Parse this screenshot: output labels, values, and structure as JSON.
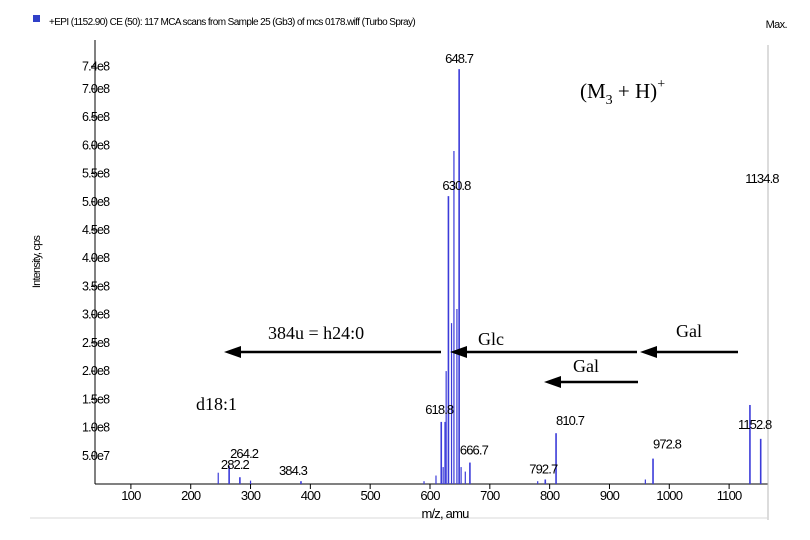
{
  "header": {
    "scan_title": "+EPI (1152.90) CE (50): 117 MCA scans from Sample 25 (Gb3) of mcs 0178.wiff (Turbo Spray)",
    "max_label": "Max."
  },
  "chart_data": {
    "type": "bar",
    "title": "",
    "xlabel": "m/z, amu",
    "ylabel": "Intensity, cps",
    "xlim": [
      40,
      1165
    ],
    "ylim": [
      0,
      760000000.0
    ],
    "x_ticks": [
      "100",
      "200",
      "300",
      "400",
      "500",
      "600",
      "700",
      "800",
      "900",
      "1000",
      "1100"
    ],
    "y_ticks": [
      {
        "label": "7.4e8",
        "value": 740000000.0
      },
      {
        "label": "7.0e8",
        "value": 700000000.0
      },
      {
        "label": "6.5e8",
        "value": 650000000.0
      },
      {
        "label": "6.0e8",
        "value": 600000000.0
      },
      {
        "label": "5.5e8",
        "value": 550000000.0
      },
      {
        "label": "5.0e8",
        "value": 500000000.0
      },
      {
        "label": "4.5e8",
        "value": 450000000.0
      },
      {
        "label": "4.0e8",
        "value": 400000000.0
      },
      {
        "label": "3.5e8",
        "value": 350000000.0
      },
      {
        "label": "3.0e8",
        "value": 300000000.0
      },
      {
        "label": "2.5e8",
        "value": 250000000.0
      },
      {
        "label": "2.0e8",
        "value": 200000000.0
      },
      {
        "label": "1.5e8",
        "value": 150000000.0
      },
      {
        "label": "1.0e8",
        "value": 100000000.0
      },
      {
        "label": "5.0e7",
        "value": 50000000.0
      }
    ],
    "peaks": [
      {
        "mz": 648.7,
        "intensity": 735000000.0,
        "label": "648.7"
      },
      {
        "mz": 630.8,
        "intensity": 510000000.0,
        "label": "630.8"
      },
      {
        "mz": 618.8,
        "intensity": 110000000.0,
        "label": "618.8"
      },
      {
        "mz": 666.7,
        "intensity": 38000000.0,
        "label": "666.7"
      },
      {
        "mz": 810.7,
        "intensity": 90000000.0,
        "label": "810.7"
      },
      {
        "mz": 792.7,
        "intensity": 8000000.0,
        "label": "792.7"
      },
      {
        "mz": 972.8,
        "intensity": 45000000.0,
        "label": "972.8"
      },
      {
        "mz": 1152.8,
        "intensity": 80000000.0,
        "label": "1152.8"
      },
      {
        "mz": 1134.8,
        "intensity": 140000000.0,
        "label": "1134.8"
      },
      {
        "mz": 264.2,
        "intensity": 32000000.0,
        "label": "264.2"
      },
      {
        "mz": 282.2,
        "intensity": 12000000.0,
        "label": "282.2"
      },
      {
        "mz": 384.3,
        "intensity": 5000000.0,
        "label": "384.3"
      }
    ],
    "minor_peaks": [
      {
        "mz": 640.0,
        "intensity": 590000000.0
      },
      {
        "mz": 645.0,
        "intensity": 310000000.0
      },
      {
        "mz": 636.0,
        "intensity": 285000000.0
      },
      {
        "mz": 627.0,
        "intensity": 200000000.0
      },
      {
        "mz": 625.0,
        "intensity": 110000000.0
      },
      {
        "mz": 622.0,
        "intensity": 30000000.0
      },
      {
        "mz": 610.0,
        "intensity": 15000000.0
      },
      {
        "mz": 652.0,
        "intensity": 30000000.0
      },
      {
        "mz": 659.0,
        "intensity": 22000000.0
      },
      {
        "mz": 246.0,
        "intensity": 20000000.0
      },
      {
        "mz": 300.0,
        "intensity": 6000000.0
      },
      {
        "mz": 960.0,
        "intensity": 8000000.0
      },
      {
        "mz": 590.0,
        "intensity": 5000000.0
      },
      {
        "mz": 780.0,
        "intensity": 5000000.0
      }
    ],
    "annotations": {
      "ion": {
        "text_main": "(M",
        "subscript": "3",
        "text_mid": " + H)",
        "superscript": "+"
      },
      "ceramide_loss": "384u = h24:0",
      "sphingoid": "d18:1",
      "glc": "Glc",
      "gal_upper": "Gal",
      "gal_lower": "Gal"
    },
    "colors": {
      "peaks": "#3b3bd9",
      "axis": "#000000",
      "header_marker": "#3040c8"
    }
  }
}
